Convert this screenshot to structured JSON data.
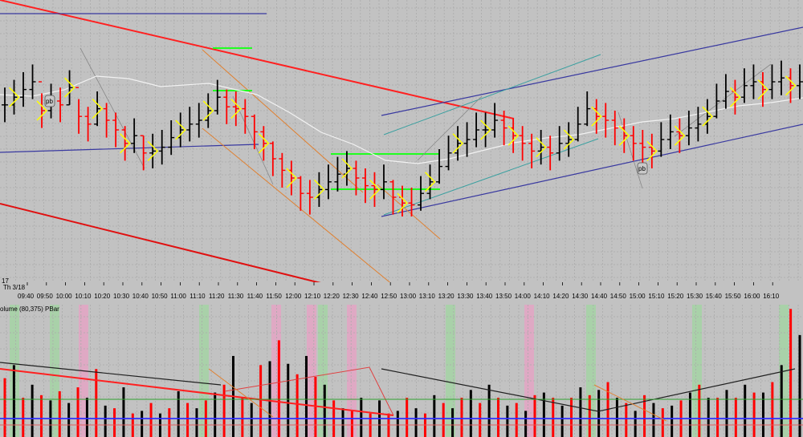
{
  "chart_data": [
    {
      "type": "bar",
      "panel": "price",
      "date_label": "Th 3/18",
      "corner_label": "17",
      "x_tick_labels": [
        "09:40",
        "09:50",
        "10:00",
        "10:10",
        "10:20",
        "10:30",
        "10:40",
        "10:50",
        "11:00",
        "11:10",
        "11:20",
        "11:30",
        "11:40",
        "11:50",
        "12:00",
        "12:10",
        "12:20",
        "12:30",
        "12:40",
        "12:50",
        "13:00",
        "13:10",
        "13:20",
        "13:30",
        "13:40",
        "13:50",
        "14:00",
        "14:10",
        "14:20",
        "14:30",
        "14:40",
        "14:50",
        "15:00",
        "15:10",
        "15:20",
        "15:30",
        "15:40",
        "15:50",
        "16:00",
        "16:10"
      ],
      "pullback_markers": [
        "pb",
        "pb"
      ],
      "grid": true,
      "bar_colors": {
        "up": "#000000",
        "down": "#ff0000",
        "highlight": "#ffff00"
      },
      "series": [
        {
          "values": [
            0.58,
            0.62,
            0.66,
            0.7,
            0.55,
            0.6,
            0.58,
            0.67,
            0.52,
            0.48,
            0.56,
            0.5,
            0.45,
            0.38,
            0.42,
            0.33,
            0.34,
            0.36,
            0.41,
            0.45,
            0.48,
            0.5,
            0.55,
            0.62,
            0.57,
            0.56,
            0.52,
            0.44,
            0.38,
            0.3,
            0.24,
            0.2,
            0.12,
            0.1,
            0.14,
            0.18,
            0.22,
            0.25,
            0.2,
            0.16,
            0.14,
            0.18,
            0.1,
            0.07,
            0.06,
            0.12,
            0.18,
            0.26,
            0.33,
            0.38,
            0.4,
            0.45,
            0.45,
            0.5,
            0.46,
            0.42,
            0.38,
            0.34,
            0.36,
            0.33,
            0.38,
            0.4,
            0.48,
            0.56,
            0.52,
            0.5,
            0.46,
            0.42,
            0.38,
            0.36,
            0.34,
            0.4,
            0.44,
            0.42,
            0.46,
            0.48,
            0.52,
            0.6,
            0.65,
            0.62,
            0.68,
            0.7,
            0.66,
            0.7,
            0.72,
            0.68,
            0.7
          ]
        }
      ]
    },
    {
      "type": "bar",
      "panel": "volume",
      "header": "olume (80,375)  PBar",
      "bar_colors": {
        "up": "#000000",
        "down": "#ff0000"
      },
      "background_bands": {
        "green": "#a4d4a4",
        "pink": "#e4a4c4"
      },
      "series": [
        {
          "values": [
            0.45,
            0.55,
            0.3,
            0.4,
            0.32,
            0.28,
            0.35,
            0.26,
            0.38,
            0.3,
            0.52,
            0.24,
            0.22,
            0.38,
            0.18,
            0.2,
            0.26,
            0.18,
            0.22,
            0.35,
            0.26,
            0.22,
            0.28,
            0.34,
            0.4,
            0.62,
            0.3,
            0.26,
            0.55,
            0.58,
            0.74,
            0.56,
            0.48,
            0.62,
            0.46,
            0.4,
            0.28,
            0.22,
            0.2,
            0.3,
            0.18,
            0.28,
            0.18,
            0.2,
            0.3,
            0.22,
            0.18,
            0.32,
            0.26,
            0.22,
            0.3,
            0.36,
            0.26,
            0.4,
            0.3,
            0.24,
            0.26,
            0.2,
            0.32,
            0.34,
            0.3,
            0.24,
            0.3,
            0.38,
            0.32,
            0.36,
            0.42,
            0.3,
            0.26,
            0.2,
            0.32,
            0.26,
            0.22,
            0.24,
            0.28,
            0.34,
            0.4,
            0.3,
            0.3,
            0.36,
            0.3,
            0.4,
            0.34,
            0.34,
            0.42,
            0.55,
            0.98,
            0.78
          ]
        }
      ]
    }
  ]
}
